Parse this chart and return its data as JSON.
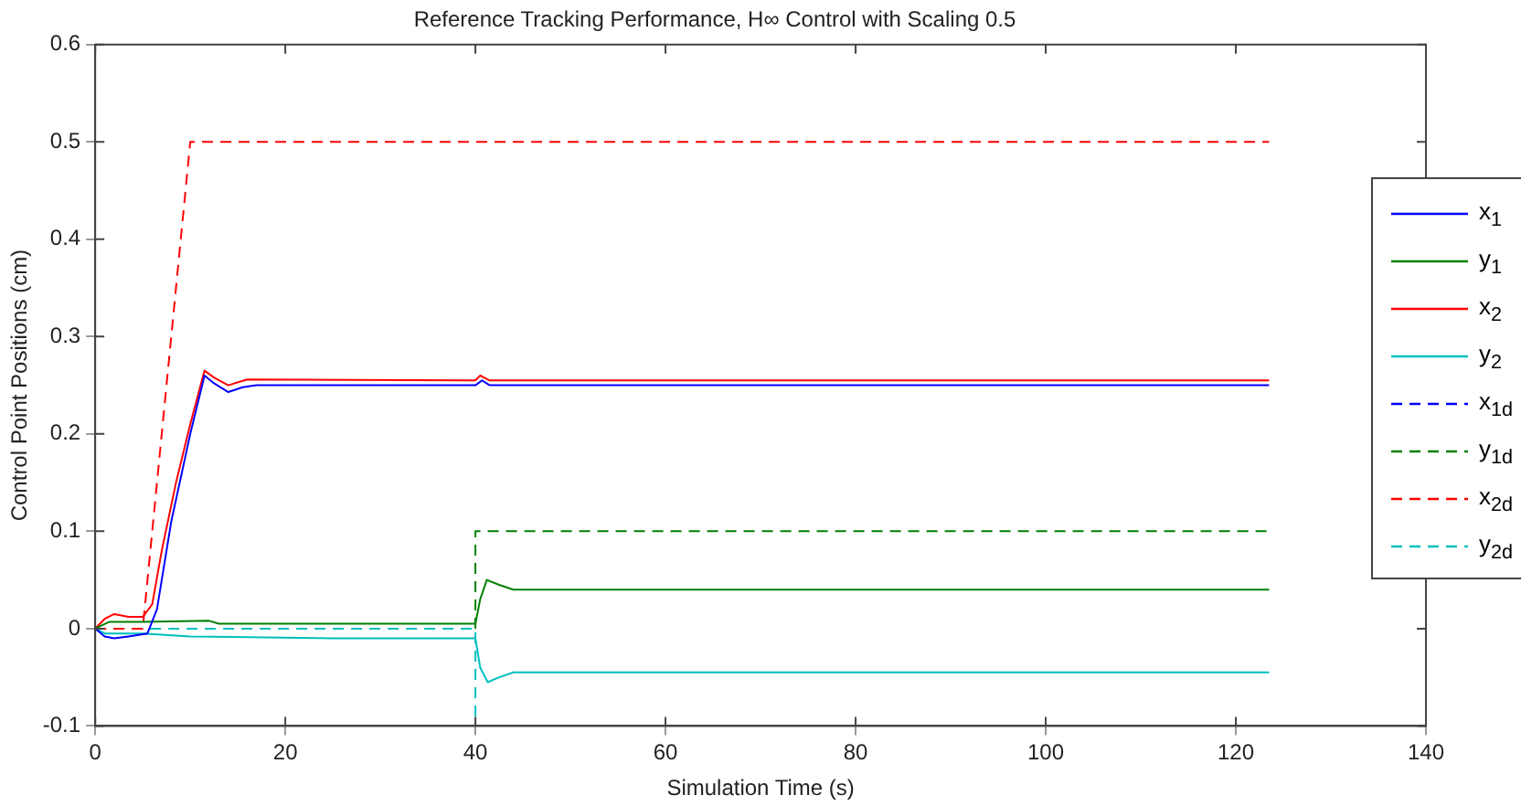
{
  "chart_data": {
    "type": "line",
    "title": "Reference Tracking Performance, H∞ Control with Scaling 0.5",
    "xlabel": "Simulation Time (s)",
    "ylabel": "Control Point Positions (cm)",
    "xlim": [
      0,
      140
    ],
    "xticks": [
      0,
      20,
      40,
      60,
      80,
      100,
      120,
      140
    ],
    "ylim": [
      -0.1,
      0.6
    ],
    "yticks": [
      -0.1,
      0,
      0.1,
      0.2,
      0.3,
      0.4,
      0.5,
      0.6
    ],
    "grid": false,
    "legend": "right",
    "marker": "none",
    "series": [
      {
        "name": "x$_{1}$",
        "color": "#0000ff",
        "line_style": "solid",
        "x": [
          0,
          1,
          2,
          3.5,
          5.5,
          6.5,
          8,
          10,
          11.5,
          12.5,
          14,
          15.5,
          17,
          40,
          40.7,
          41.5,
          123.5
        ],
        "values": [
          0,
          -0.008,
          -0.01,
          -0.008,
          -0.005,
          0.02,
          0.11,
          0.2,
          0.26,
          0.252,
          0.243,
          0.248,
          0.25,
          0.25,
          0.255,
          0.25,
          0.25
        ]
      },
      {
        "name": "y$_{1}$",
        "color": "#008000",
        "line_style": "solid",
        "x": [
          0,
          1.5,
          5,
          12,
          13,
          40,
          40.5,
          41.2,
          42.5,
          44,
          46,
          123.5
        ],
        "values": [
          0,
          0.007,
          0.007,
          0.008,
          0.005,
          0.005,
          0.03,
          0.05,
          0.045,
          0.04,
          0.04,
          0.04
        ]
      },
      {
        "name": "x$_{2}$",
        "color": "#ff0000",
        "line_style": "solid",
        "x": [
          0,
          1,
          2,
          3.5,
          5,
          6,
          7,
          8.5,
          10,
          11.5,
          12.5,
          14,
          16,
          40,
          40.5,
          41.5,
          123.5
        ],
        "values": [
          0,
          0.01,
          0.015,
          0.012,
          0.012,
          0.025,
          0.08,
          0.15,
          0.21,
          0.265,
          0.258,
          0.25,
          0.256,
          0.255,
          0.26,
          0.255,
          0.255
        ]
      },
      {
        "name": "y$_{2}$",
        "color": "#00bfbf",
        "line_style": "solid",
        "x": [
          0,
          1,
          5,
          10,
          25,
          40,
          40.5,
          41.3,
          42.5,
          44,
          46,
          123.5
        ],
        "values": [
          0,
          -0.005,
          -0.005,
          -0.008,
          -0.01,
          -0.01,
          -0.04,
          -0.055,
          -0.05,
          -0.045,
          -0.045,
          -0.045
        ]
      },
      {
        "name": "x$_{1d}$",
        "color": "#0000ff",
        "line_style": "dashed"
      },
      {
        "name": "y$_{1d}$",
        "color": "#008000",
        "line_style": "dashed",
        "x": [
          40,
          40,
          123.5
        ],
        "values": [
          0,
          0.1,
          0.1
        ]
      },
      {
        "name": "x$_{2d}$",
        "color": "#ff0000",
        "line_style": "dashed",
        "x": [
          0,
          5,
          10,
          123.5
        ],
        "values": [
          0,
          0,
          0.5,
          0.5
        ]
      },
      {
        "name": "y$_{2d}$",
        "color": "#00bfbf",
        "line_style": "dashed",
        "x": [
          0,
          40,
          40
        ],
        "values": [
          0,
          0,
          -0.1
        ]
      }
    ]
  }
}
